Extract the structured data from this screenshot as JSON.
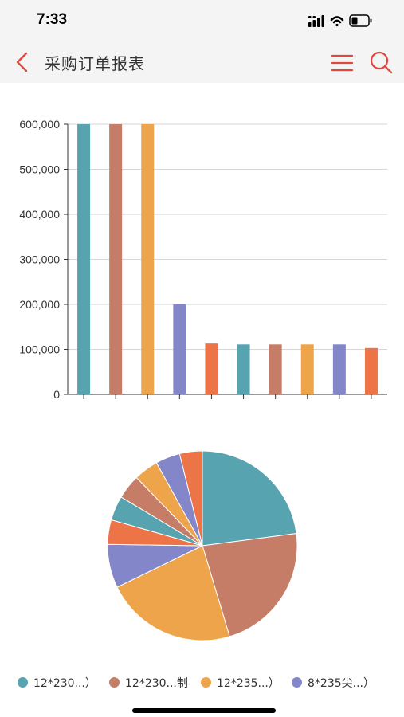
{
  "status_bar": {
    "time": "7:33"
  },
  "header": {
    "title": "采购订单报表"
  },
  "icons": {
    "back": "chevron-left-icon",
    "menu": "hamburger-menu-icon",
    "search": "search-icon",
    "signal": "signal-icon",
    "wifi": "wifi-icon",
    "battery": "battery-icon"
  },
  "colors": {
    "accent": "#e0483e",
    "series": [
      "#58a3b0",
      "#c67d68",
      "#eda44b",
      "#8387c9",
      "#ec7446"
    ],
    "grid": "#d6d6d6",
    "axis": "#333333"
  },
  "chart_data": [
    {
      "type": "bar",
      "ylim": [
        0,
        600000
      ],
      "yticks": [
        "0",
        "100,000",
        "200,000",
        "300,000",
        "400,000",
        "500,000",
        "600,000"
      ],
      "values": [
        600000,
        600000,
        600000,
        200000,
        113000,
        111000,
        111000,
        111000,
        111000,
        103000
      ],
      "color_index": [
        0,
        1,
        2,
        3,
        4,
        0,
        1,
        2,
        3,
        4
      ],
      "grid": true
    },
    {
      "type": "pie",
      "slices": [
        {
          "value": 22.5,
          "color_index": 0
        },
        {
          "value": 22.0,
          "color_index": 1
        },
        {
          "value": 22.0,
          "color_index": 2
        },
        {
          "value": 7.3,
          "color_index": 3
        },
        {
          "value": 4.1,
          "color_index": 4
        },
        {
          "value": 4.1,
          "color_index": 0
        },
        {
          "value": 4.1,
          "color_index": 1
        },
        {
          "value": 4.1,
          "color_index": 2
        },
        {
          "value": 4.1,
          "color_index": 3
        },
        {
          "value": 3.8,
          "color_index": 4
        }
      ],
      "legend": {
        "placement": "bottom",
        "items": [
          {
            "label": "12*230...）",
            "color_index": 0
          },
          {
            "label": "12*230...制",
            "color_index": 1
          },
          {
            "label": "12*235...）",
            "color_index": 2
          },
          {
            "label": "8*235尖...）",
            "color_index": 3
          }
        ]
      }
    }
  ]
}
